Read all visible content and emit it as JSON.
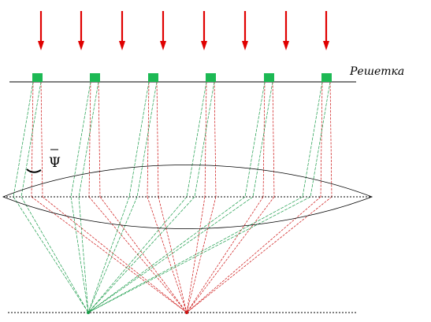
{
  "labels": {
    "grating": "Решетка",
    "angle": "Ψ"
  },
  "colors": {
    "incident": "#e00000",
    "diffracted": "#1a9c4a",
    "undiffracted": "#cc1111",
    "slit": "#1db954",
    "line": "#000000"
  }
}
